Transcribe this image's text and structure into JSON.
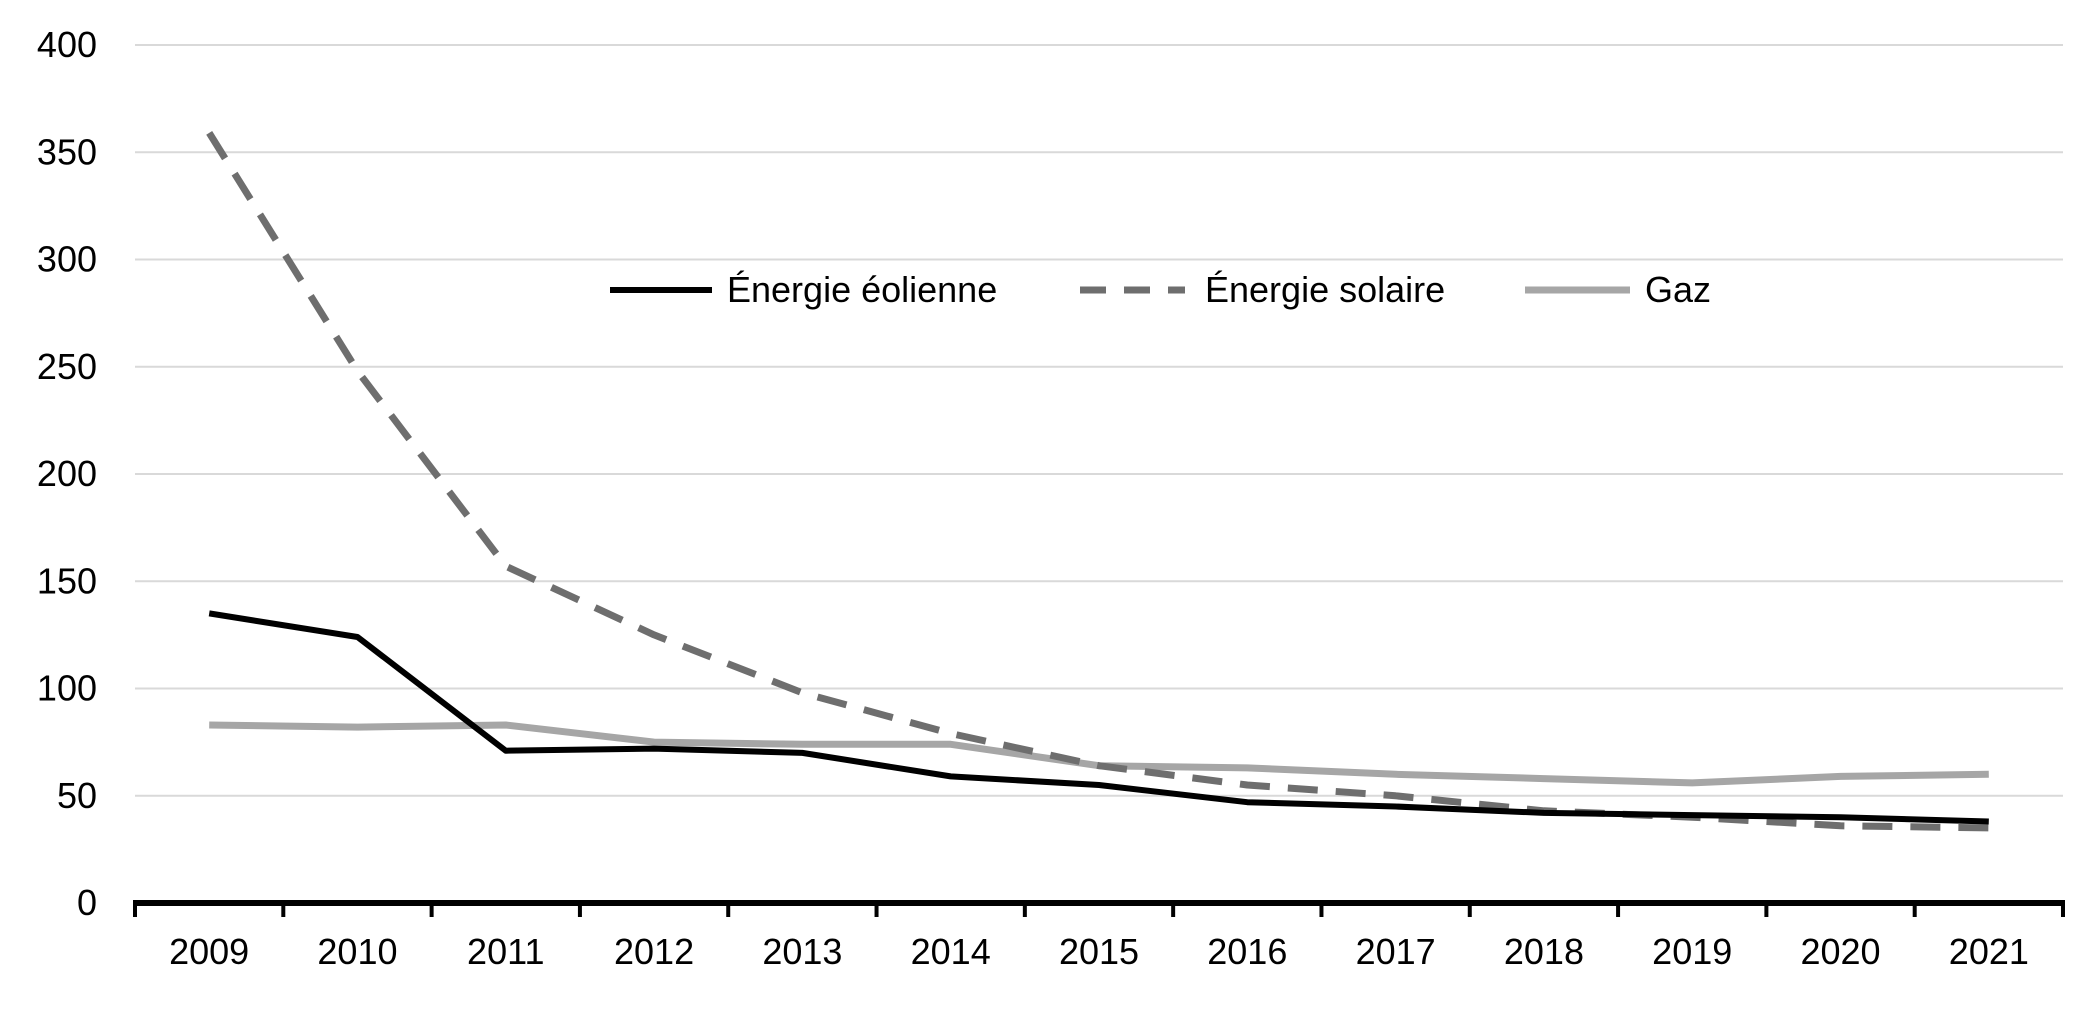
{
  "chart_data": {
    "type": "line",
    "title": "",
    "xlabel": "",
    "ylabel": "",
    "categories": [
      "2009",
      "2010",
      "2011",
      "2012",
      "2013",
      "2014",
      "2015",
      "2016",
      "2017",
      "2018",
      "2019",
      "2020",
      "2021"
    ],
    "ylim": [
      0,
      400
    ],
    "yticks": [
      0,
      50,
      100,
      150,
      200,
      250,
      300,
      350,
      400
    ],
    "grid": true,
    "legend_position": "top-center",
    "series": [
      {
        "name": "Énergie éolienne",
        "style": "solid",
        "color": "#000000",
        "values": [
          135,
          124,
          71,
          72,
          70,
          59,
          55,
          47,
          45,
          42,
          41,
          40,
          38
        ]
      },
      {
        "name": "Énergie solaire",
        "style": "dashed",
        "color": "#6e6e6e",
        "values": [
          359,
          248,
          157,
          125,
          98,
          79,
          64,
          55,
          50,
          43,
          40,
          36,
          35
        ]
      },
      {
        "name": "Gaz",
        "style": "solid",
        "color": "#a6a6a6",
        "values": [
          83,
          82,
          83,
          75,
          74,
          74,
          64,
          63,
          60,
          58,
          56,
          59,
          60
        ]
      }
    ]
  }
}
